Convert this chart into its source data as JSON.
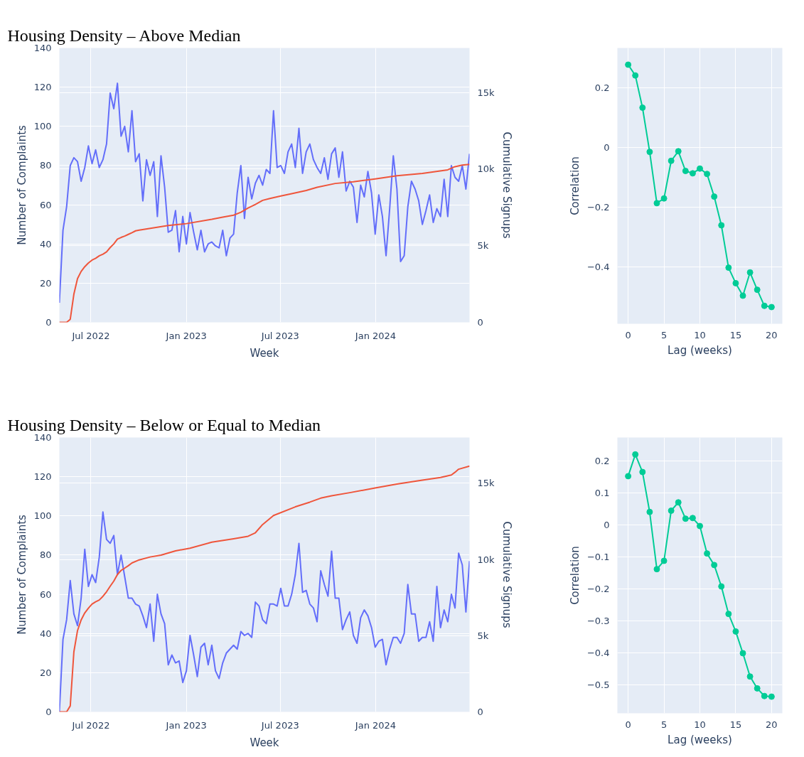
{
  "chart_data": [
    {
      "type": "line",
      "title": "Housing Density – Above Median",
      "xlabel": "Week",
      "ylabel": "Number of Complaints",
      "y2label": "Cumulative Signups",
      "grid": true,
      "x": [
        "2022-05-01",
        "2022-05-08",
        "2022-05-15",
        "2022-05-22",
        "2022-05-29",
        "2022-06-05",
        "2022-06-12",
        "2022-06-19",
        "2022-06-26",
        "2022-07-03",
        "2022-07-10",
        "2022-07-17",
        "2022-07-24",
        "2022-07-31",
        "2022-08-07",
        "2022-08-14",
        "2022-08-21",
        "2022-08-28",
        "2022-09-04",
        "2022-09-11",
        "2022-09-18",
        "2022-09-25",
        "2022-10-02",
        "2022-10-09",
        "2022-10-16",
        "2022-10-23",
        "2022-10-30",
        "2022-11-06",
        "2022-11-13",
        "2022-11-20",
        "2022-11-27",
        "2022-12-04",
        "2022-12-11",
        "2022-12-18",
        "2022-12-25",
        "2023-01-01",
        "2023-01-08",
        "2023-01-15",
        "2023-01-22",
        "2023-01-29",
        "2023-02-05",
        "2023-02-12",
        "2023-02-19",
        "2023-02-26",
        "2023-03-05",
        "2023-03-12",
        "2023-03-19",
        "2023-03-26",
        "2023-04-02",
        "2023-04-09",
        "2023-04-16",
        "2023-04-23",
        "2023-04-30",
        "2023-05-07",
        "2023-05-14",
        "2023-05-21",
        "2023-05-28",
        "2023-06-04",
        "2023-06-11",
        "2023-06-18",
        "2023-06-25",
        "2023-07-02",
        "2023-07-09",
        "2023-07-16",
        "2023-07-23",
        "2023-07-30",
        "2023-08-06",
        "2023-08-13",
        "2023-08-20",
        "2023-08-27",
        "2023-09-03",
        "2023-09-10",
        "2023-09-17",
        "2023-09-24",
        "2023-10-01",
        "2023-10-08",
        "2023-10-15",
        "2023-10-22",
        "2023-10-29",
        "2023-11-05",
        "2023-11-12",
        "2023-11-19",
        "2023-11-26",
        "2023-12-03",
        "2023-12-10",
        "2023-12-17",
        "2023-12-24",
        "2023-12-31",
        "2024-01-07",
        "2024-01-14",
        "2024-01-21",
        "2024-01-28",
        "2024-02-04",
        "2024-02-11",
        "2024-02-18",
        "2024-02-25",
        "2024-03-03",
        "2024-03-10",
        "2024-03-17",
        "2024-03-24",
        "2024-03-31",
        "2024-04-07",
        "2024-04-14",
        "2024-04-21",
        "2024-04-28",
        "2024-05-05",
        "2024-05-12",
        "2024-05-19",
        "2024-05-26",
        "2024-06-02",
        "2024-06-09",
        "2024-06-16",
        "2024-06-23",
        "2024-06-30"
      ],
      "xlim": [
        "2022-05-01",
        "2024-06-30"
      ],
      "xticks": [
        {
          "value": "2022-07-01",
          "label": "Jul 2022"
        },
        {
          "value": "2023-01-01",
          "label": "Jan 2023"
        },
        {
          "value": "2023-07-01",
          "label": "Jul 2023"
        },
        {
          "value": "2024-01-01",
          "label": "Jan 2024"
        }
      ],
      "ylim": [
        0,
        140
      ],
      "yticks": [
        0,
        20,
        40,
        60,
        80,
        100,
        120,
        140
      ],
      "y2lim": [
        0,
        17900
      ],
      "y2ticks": [
        0,
        {
          "value": 5000,
          "label": "5k"
        },
        {
          "value": 10000,
          "label": "10k"
        },
        {
          "value": 15000,
          "label": "15k"
        }
      ],
      "series": [
        {
          "color": "#636efa",
          "values": [
            10,
            47,
            59,
            80,
            84,
            82,
            72,
            79,
            90,
            81,
            88,
            79,
            83,
            91,
            117,
            109,
            122,
            95,
            100,
            87,
            108,
            82,
            86,
            62,
            83,
            75,
            82,
            54,
            85,
            69,
            46,
            47,
            57,
            36,
            54,
            40,
            56,
            46,
            37,
            47,
            36,
            40,
            41,
            39,
            38,
            47,
            34,
            43,
            45,
            66,
            80,
            53,
            74,
            63,
            71,
            75,
            70,
            78,
            76,
            108,
            79,
            80,
            76,
            87,
            91,
            79,
            99,
            76,
            87,
            91,
            83,
            79,
            76,
            84,
            73,
            86,
            89,
            74,
            87,
            67,
            72,
            69,
            51,
            70,
            64,
            77,
            66,
            45,
            65,
            54,
            34,
            58,
            85,
            68,
            31,
            34,
            59,
            72,
            68,
            62,
            50,
            57,
            65,
            51,
            58,
            54,
            73,
            54,
            80,
            74,
            72,
            80,
            68,
            86
          ]
        },
        {
          "color": "#ef553b",
          "axis": "y2",
          "x": [
            "2022-05-01",
            "2022-05-15",
            "2022-05-22",
            "2022-05-29",
            "2022-06-05",
            "2022-06-12",
            "2022-06-19",
            "2022-06-26",
            "2022-07-03",
            "2022-07-10",
            "2022-07-17",
            "2022-07-24",
            "2022-07-31",
            "2022-08-07",
            "2022-08-14",
            "2022-08-21",
            "2022-08-28",
            "2022-09-04",
            "2022-09-11",
            "2022-09-18",
            "2022-09-25",
            "2022-10-02",
            "2022-11-27",
            "2023-01-01",
            "2023-02-19",
            "2023-03-12",
            "2023-04-02",
            "2023-04-16",
            "2023-04-30",
            "2023-05-14",
            "2023-05-28",
            "2023-06-11",
            "2023-07-02",
            "2023-07-23",
            "2023-08-20",
            "2023-09-10",
            "2023-10-15",
            "2023-11-19",
            "2023-12-31",
            "2024-02-11",
            "2024-03-31",
            "2024-05-19",
            "2024-06-02",
            "2024-06-16",
            "2024-06-30"
          ],
          "values": [
            0,
            0,
            200,
            1840,
            2850,
            3320,
            3630,
            3870,
            4060,
            4180,
            4340,
            4450,
            4600,
            4880,
            5120,
            5430,
            5540,
            5630,
            5740,
            5850,
            5970,
            6020,
            6320,
            6440,
            6720,
            6860,
            6990,
            7180,
            7460,
            7690,
            7960,
            8080,
            8240,
            8390,
            8600,
            8810,
            9060,
            9170,
            9360,
            9560,
            9720,
            9950,
            10160,
            10260,
            10310
          ]
        }
      ]
    },
    {
      "type": "line",
      "xlabel": "Lag (weeks)",
      "ylabel": "Correlation",
      "grid": true,
      "marker": "circle",
      "x": [
        0,
        1,
        2,
        3,
        4,
        5,
        6,
        7,
        8,
        9,
        10,
        11,
        12,
        13,
        14,
        15,
        16,
        17,
        18,
        19,
        20
      ],
      "xlim": [
        -1.5,
        21.5
      ],
      "xticks": [
        0,
        5,
        10,
        15,
        20
      ],
      "ylim": [
        -0.59,
        0.334
      ],
      "yticks": [
        {
          "value": -0.4,
          "label": "−0.4"
        },
        {
          "value": -0.2,
          "label": "−0.2"
        },
        0,
        0.2
      ],
      "series": [
        {
          "color": "#00cc96",
          "values": [
            0.278,
            0.242,
            0.134,
            -0.014,
            -0.186,
            -0.17,
            -0.044,
            -0.012,
            -0.078,
            -0.086,
            -0.07,
            -0.088,
            -0.164,
            -0.26,
            -0.402,
            -0.454,
            -0.496,
            -0.418,
            -0.476,
            -0.53,
            -0.534
          ]
        }
      ]
    },
    {
      "type": "line",
      "title": "Housing Density – Below or Equal to Median",
      "xlabel": "Week",
      "ylabel": "Number of Complaints",
      "y2label": "Cumulative Signups",
      "grid": true,
      "x": [
        "2022-05-01",
        "2022-05-08",
        "2022-05-15",
        "2022-05-22",
        "2022-05-29",
        "2022-06-05",
        "2022-06-12",
        "2022-06-19",
        "2022-06-26",
        "2022-07-03",
        "2022-07-10",
        "2022-07-17",
        "2022-07-24",
        "2022-07-31",
        "2022-08-07",
        "2022-08-14",
        "2022-08-21",
        "2022-08-28",
        "2022-09-04",
        "2022-09-11",
        "2022-09-18",
        "2022-09-25",
        "2022-10-02",
        "2022-10-09",
        "2022-10-16",
        "2022-10-23",
        "2022-10-30",
        "2022-11-06",
        "2022-11-13",
        "2022-11-20",
        "2022-11-27",
        "2022-12-04",
        "2022-12-11",
        "2022-12-18",
        "2022-12-25",
        "2023-01-01",
        "2023-01-08",
        "2023-01-15",
        "2023-01-22",
        "2023-01-29",
        "2023-02-05",
        "2023-02-12",
        "2023-02-19",
        "2023-02-26",
        "2023-03-05",
        "2023-03-12",
        "2023-03-19",
        "2023-03-26",
        "2023-04-02",
        "2023-04-09",
        "2023-04-16",
        "2023-04-23",
        "2023-04-30",
        "2023-05-07",
        "2023-05-14",
        "2023-05-21",
        "2023-05-28",
        "2023-06-04",
        "2023-06-11",
        "2023-06-18",
        "2023-06-25",
        "2023-07-02",
        "2023-07-09",
        "2023-07-16",
        "2023-07-23",
        "2023-07-30",
        "2023-08-06",
        "2023-08-13",
        "2023-08-20",
        "2023-08-27",
        "2023-09-03",
        "2023-09-10",
        "2023-09-17",
        "2023-09-24",
        "2023-10-01",
        "2023-10-08",
        "2023-10-15",
        "2023-10-22",
        "2023-10-29",
        "2023-11-05",
        "2023-11-12",
        "2023-11-19",
        "2023-11-26",
        "2023-12-03",
        "2023-12-10",
        "2023-12-17",
        "2023-12-24",
        "2023-12-31",
        "2024-01-07",
        "2024-01-14",
        "2024-01-21",
        "2024-01-28",
        "2024-02-04",
        "2024-02-11",
        "2024-02-18",
        "2024-02-25",
        "2024-03-03",
        "2024-03-10",
        "2024-03-17",
        "2024-03-24",
        "2024-03-31",
        "2024-04-07",
        "2024-04-14",
        "2024-04-21",
        "2024-04-28",
        "2024-05-05",
        "2024-05-12",
        "2024-05-19",
        "2024-05-26",
        "2024-06-02",
        "2024-06-09",
        "2024-06-16",
        "2024-06-23",
        "2024-06-30"
      ],
      "xlim": [
        "2022-05-01",
        "2024-06-30"
      ],
      "xticks": [
        {
          "value": "2022-07-01",
          "label": "Jul 2022"
        },
        {
          "value": "2023-01-01",
          "label": "Jan 2023"
        },
        {
          "value": "2023-07-01",
          "label": "Jul 2023"
        },
        {
          "value": "2024-01-01",
          "label": "Jan 2024"
        }
      ],
      "ylim": [
        0,
        140
      ],
      "yticks": [
        0,
        20,
        40,
        60,
        80,
        100,
        120,
        140
      ],
      "y2lim": [
        0,
        18000
      ],
      "y2ticks": [
        0,
        {
          "value": 5000,
          "label": "5k"
        },
        {
          "value": 10000,
          "label": "10k"
        },
        {
          "value": 15000,
          "label": "15k"
        }
      ],
      "series": [
        {
          "color": "#636efa",
          "values": [
            0,
            37,
            47,
            67,
            50,
            44,
            58,
            83,
            64,
            70,
            66,
            79,
            102,
            88,
            86,
            90,
            70,
            80,
            69,
            58,
            58,
            55,
            54,
            49,
            43,
            55,
            36,
            60,
            50,
            45,
            24,
            29,
            25,
            26,
            15,
            21,
            39,
            29,
            18,
            33,
            35,
            24,
            34,
            21,
            17,
            25,
            30,
            32,
            34,
            32,
            41,
            39,
            40,
            38,
            56,
            54,
            47,
            45,
            55,
            55,
            54,
            63,
            54,
            54,
            60,
            70,
            86,
            61,
            62,
            55,
            53,
            46,
            72,
            65,
            59,
            82,
            58,
            58,
            42,
            47,
            51,
            39,
            35,
            48,
            52,
            49,
            43,
            33,
            36,
            37,
            24,
            32,
            38,
            38,
            35,
            40,
            65,
            50,
            50,
            36,
            38,
            38,
            46,
            36,
            64,
            43,
            52,
            46,
            60,
            53,
            81,
            75,
            51,
            77
          ]
        },
        {
          "color": "#ef553b",
          "axis": "y2",
          "x": [
            "2022-05-01",
            "2022-05-15",
            "2022-05-22",
            "2022-05-29",
            "2022-06-05",
            "2022-06-12",
            "2022-06-19",
            "2022-06-26",
            "2022-07-03",
            "2022-07-10",
            "2022-07-17",
            "2022-07-24",
            "2022-07-31",
            "2022-08-07",
            "2022-08-14",
            "2022-08-21",
            "2022-08-28",
            "2022-09-04",
            "2022-09-11",
            "2022-09-18",
            "2022-10-02",
            "2022-10-23",
            "2022-11-13",
            "2022-12-11",
            "2023-01-08",
            "2023-02-19",
            "2023-04-02",
            "2023-04-30",
            "2023-05-14",
            "2023-05-28",
            "2023-06-11",
            "2023-06-18",
            "2023-07-30",
            "2023-08-27",
            "2023-09-17",
            "2023-10-08",
            "2023-11-12",
            "2023-12-31",
            "2024-02-11",
            "2024-03-31",
            "2024-05-05",
            "2024-05-26",
            "2024-06-02",
            "2024-06-09",
            "2024-06-30"
          ],
          "values": [
            0,
            0,
            390,
            3940,
            5330,
            6030,
            6490,
            6800,
            7070,
            7220,
            7340,
            7580,
            7880,
            8240,
            8580,
            9010,
            9280,
            9430,
            9590,
            9770,
            9970,
            10160,
            10280,
            10560,
            10740,
            11130,
            11360,
            11520,
            11750,
            12290,
            12680,
            12880,
            13450,
            13760,
            14020,
            14180,
            14380,
            14690,
            14950,
            15200,
            15380,
            15540,
            15720,
            15920,
            16120
          ]
        }
      ]
    },
    {
      "type": "line",
      "xlabel": "Lag (weeks)",
      "ylabel": "Correlation",
      "grid": true,
      "marker": "circle",
      "x": [
        0,
        1,
        2,
        3,
        4,
        5,
        6,
        7,
        8,
        9,
        10,
        11,
        12,
        13,
        14,
        15,
        16,
        17,
        18,
        19,
        20
      ],
      "xlim": [
        -1.5,
        21.5
      ],
      "xticks": [
        0,
        5,
        10,
        15,
        20
      ],
      "ylim": [
        -0.59,
        0.273
      ],
      "yticks": [
        {
          "value": -0.5,
          "label": "−0.5"
        },
        {
          "value": -0.4,
          "label": "−0.4"
        },
        {
          "value": -0.3,
          "label": "−0.3"
        },
        {
          "value": -0.2,
          "label": "−0.2"
        },
        {
          "value": -0.1,
          "label": "−0.1"
        },
        0,
        0.1,
        0.2
      ],
      "series": [
        {
          "color": "#00cc96",
          "values": [
            0.152,
            0.22,
            0.165,
            0.04,
            -0.139,
            -0.113,
            0.044,
            0.07,
            0.019,
            0.021,
            -0.004,
            -0.09,
            -0.126,
            -0.193,
            -0.279,
            -0.334,
            -0.402,
            -0.475,
            -0.512,
            -0.536,
            -0.538
          ]
        }
      ]
    }
  ]
}
